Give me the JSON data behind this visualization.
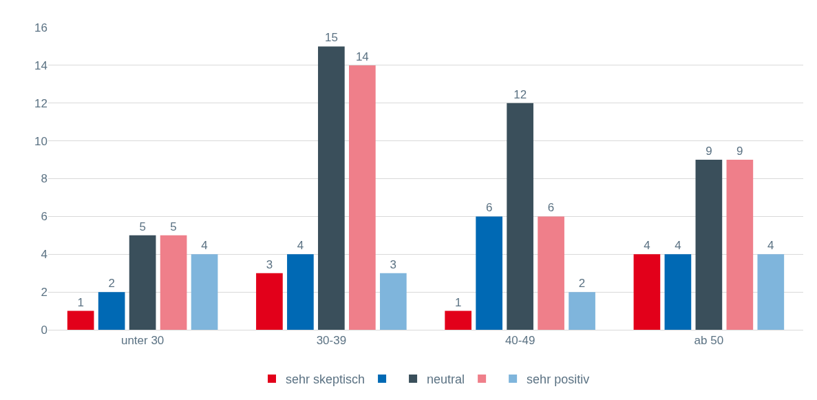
{
  "chart_data": {
    "type": "bar",
    "categories": [
      "unter 30",
      "30-39",
      "40-49",
      "ab 50"
    ],
    "series": [
      {
        "name": "sehr skeptisch",
        "color": "#e2001a",
        "values": [
          1,
          3,
          1,
          4
        ]
      },
      {
        "color": "#0069b4",
        "values": [
          2,
          4,
          6,
          4
        ]
      },
      {
        "name": "neutral",
        "color": "#3a4f5b",
        "values": [
          5,
          15,
          12,
          9
        ]
      },
      {
        "color": "#ef7f8a",
        "values": [
          5,
          14,
          6,
          9
        ]
      },
      {
        "name": "sehr positiv",
        "color": "#7fb5dc",
        "values": [
          4,
          3,
          2,
          4
        ]
      }
    ],
    "ylim": [
      0,
      16
    ],
    "yticks": [
      0,
      2,
      4,
      6,
      8,
      10,
      12,
      14,
      16
    ],
    "grid": "y",
    "legend": "bottom",
    "data_labels": true
  }
}
